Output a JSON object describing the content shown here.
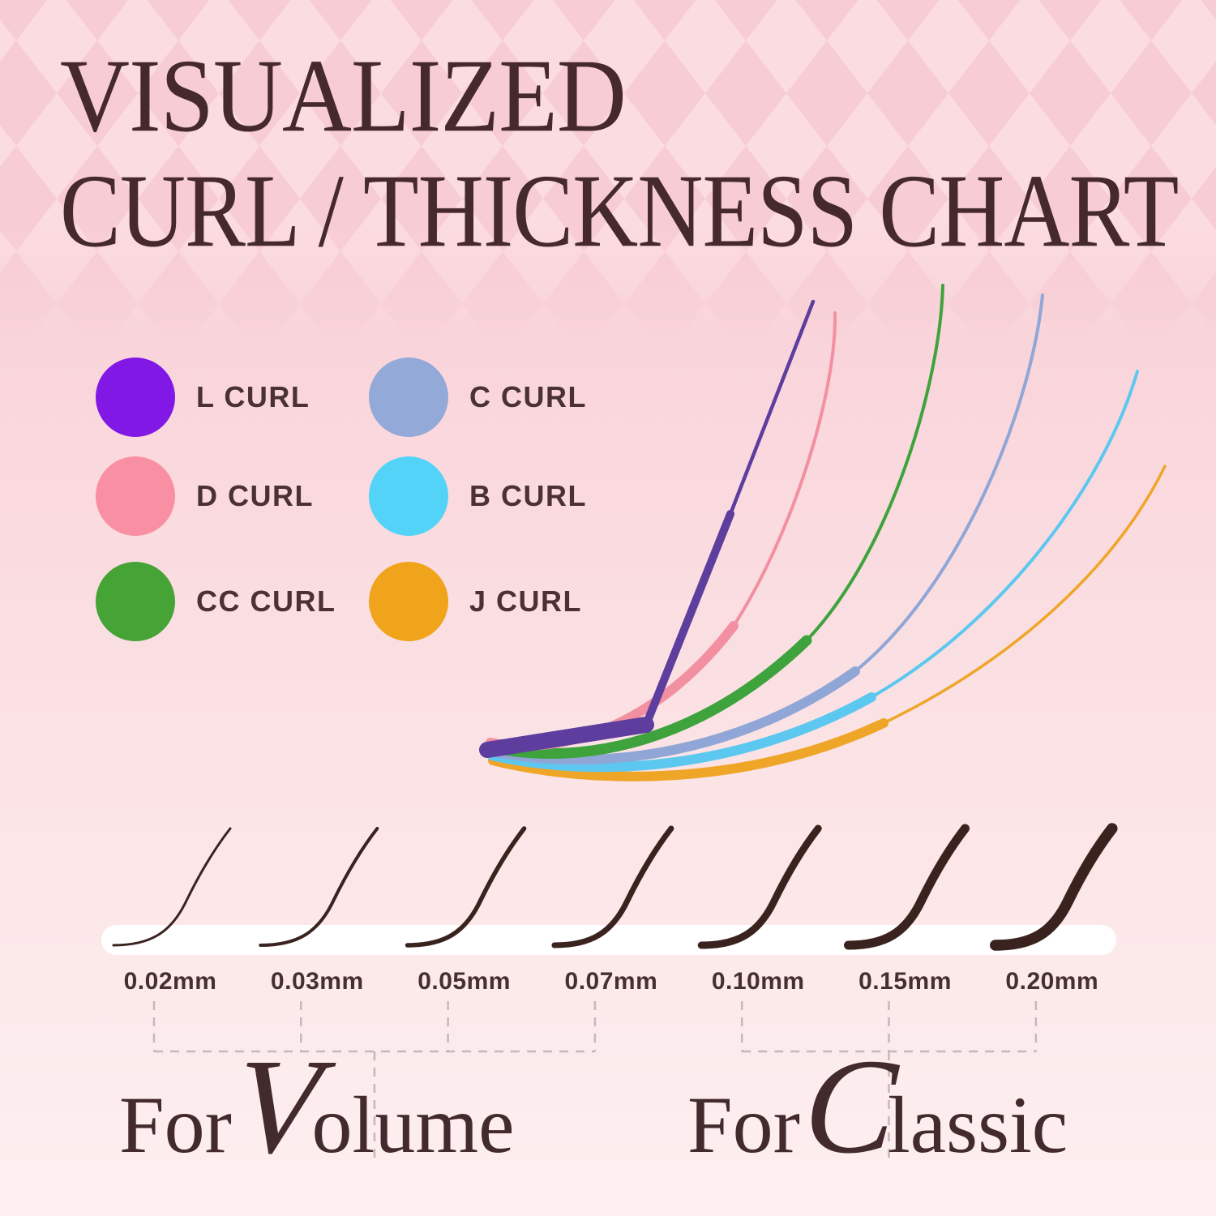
{
  "title": {
    "line1": "VISUALIZED",
    "line2": "CURL / THICKNESS CHART"
  },
  "colors": {
    "background_top": "#f7c8d1",
    "background_bottom": "#fdeff0",
    "diamond_dark": "#f8ccd4",
    "diamond_light": "#fbdce1",
    "text_dark_brown": "#45292c",
    "lash_brown": "#3a231f",
    "strip_white": "#ffffff",
    "dash_gray": "#c4b8ba"
  },
  "legend": [
    {
      "label": "L CURL",
      "dot_color": "#8118e6",
      "line_color": "#5d3d9e"
    },
    {
      "label": "C CURL",
      "dot_color": "#93a9d8",
      "line_color": "#8fa6d6"
    },
    {
      "label": "D CURL",
      "dot_color": "#f98fa2",
      "line_color": "#f290a2"
    },
    {
      "label": "B CURL",
      "dot_color": "#53d3f7",
      "line_color": "#5cc8ef"
    },
    {
      "label": "CC CURL",
      "dot_color": "#46a336",
      "line_color": "#3ea33c"
    },
    {
      "label": "J CURL",
      "dot_color": "#f0a41c",
      "line_color": "#efa527"
    }
  ],
  "chart_data": {
    "type": "line",
    "title": "VISUALIZED CURL / THICKNESS CHART",
    "legend_position": "middle-left",
    "curl_series_order_most_to_least_lift": [
      "L CURL",
      "D CURL",
      "CC CURL",
      "C CURL",
      "B CURL",
      "J CURL"
    ],
    "curls": [
      {
        "name": "L CURL",
        "color": "#8118e6",
        "shape": "flat base with sharp angled upward lift"
      },
      {
        "name": "D CURL",
        "color": "#f98fa2",
        "shape": "strongest round curl"
      },
      {
        "name": "CC CURL",
        "color": "#46a336",
        "shape": "very strong round curl"
      },
      {
        "name": "C CURL",
        "color": "#93a9d8",
        "shape": "medium round curl"
      },
      {
        "name": "B CURL",
        "color": "#53d3f7",
        "shape": "soft curl"
      },
      {
        "name": "J CURL",
        "color": "#f0a41c",
        "shape": "slight natural lift"
      }
    ],
    "thickness_chart": {
      "unit": "mm",
      "values": [
        0.02,
        0.03,
        0.05,
        0.07,
        0.1,
        0.15,
        0.2
      ],
      "labels": [
        "0.02mm",
        "0.03mm",
        "0.05mm",
        "0.07mm",
        "0.10mm",
        "0.15mm",
        "0.20mm"
      ],
      "groups": [
        {
          "caption_prefix": "For",
          "caption_word": "Volume",
          "member_labels": [
            "0.02mm",
            "0.03mm",
            "0.05mm",
            "0.07mm"
          ]
        },
        {
          "caption_prefix": "For",
          "caption_word": "Classic",
          "member_labels": [
            "0.10mm",
            "0.15mm",
            "0.20mm"
          ]
        }
      ]
    }
  },
  "captions": {
    "volume": {
      "prefix": "For",
      "word": "Volume"
    },
    "classic": {
      "prefix": "For",
      "word": "Classic"
    }
  }
}
